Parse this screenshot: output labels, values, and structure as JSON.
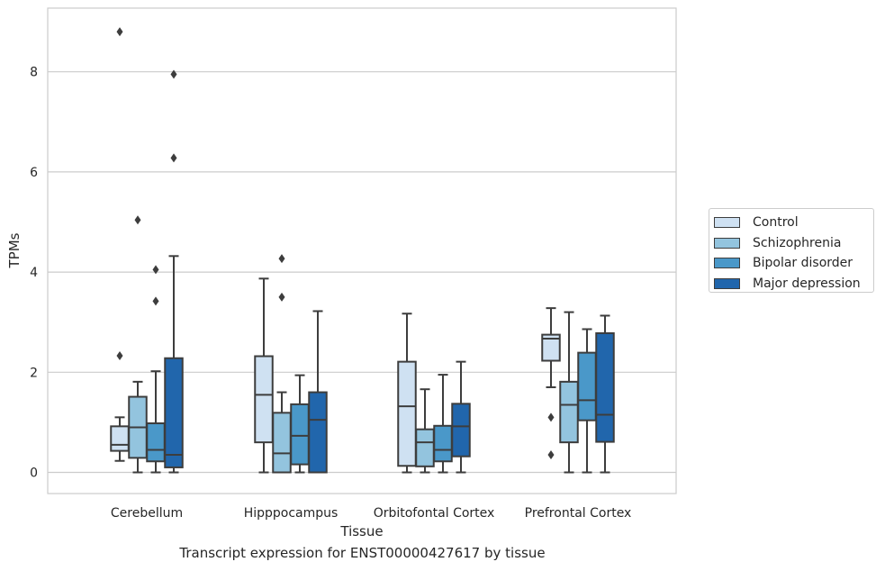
{
  "chart_data": {
    "type": "box",
    "caption": "Transcript expression for ENST00000427617 by tissue",
    "xlabel": "Tissue",
    "ylabel": "TPMs",
    "ylim": [
      -0.42,
      9.25
    ],
    "yticks": [
      0,
      2,
      4,
      6,
      8
    ],
    "ytick_labels": [
      "0",
      "2",
      "4",
      "6",
      "8"
    ],
    "grid": "horizontal",
    "legend_position": "right",
    "categories": [
      "Cerebellum",
      "Hipppocampus",
      "Orbitofontal Cortex",
      "Prefrontal Cortex"
    ],
    "series": [
      {
        "name": "Control",
        "color": "#cfe1f2",
        "boxes": [
          {
            "whislo": 0.23,
            "q1": 0.43,
            "med": 0.55,
            "q3": 0.92,
            "whishi": 1.1,
            "fliers": [
              2.33,
              8.8
            ]
          },
          {
            "whislo": 0.0,
            "q1": 0.6,
            "med": 1.55,
            "q3": 2.32,
            "whishi": 3.87,
            "fliers": []
          },
          {
            "whislo": 0.0,
            "q1": 0.13,
            "med": 1.32,
            "q3": 2.21,
            "whishi": 3.17,
            "fliers": []
          },
          {
            "whislo": 1.7,
            "q1": 2.23,
            "med": 2.67,
            "q3": 2.75,
            "whishi": 3.28,
            "fliers": [
              1.1,
              0.35
            ]
          }
        ]
      },
      {
        "name": "Schizophrenia",
        "color": "#93c4de",
        "boxes": [
          {
            "whislo": 0.0,
            "q1": 0.29,
            "med": 0.9,
            "q3": 1.51,
            "whishi": 1.81,
            "fliers": [
              5.04
            ]
          },
          {
            "whislo": 0.0,
            "q1": 0.0,
            "med": 0.38,
            "q3": 1.19,
            "whishi": 1.6,
            "fliers": [
              3.5,
              4.27
            ]
          },
          {
            "whislo": 0.0,
            "q1": 0.12,
            "med": 0.6,
            "q3": 0.86,
            "whishi": 1.66,
            "fliers": []
          },
          {
            "whislo": 0.0,
            "q1": 0.6,
            "med": 1.35,
            "q3": 1.81,
            "whishi": 3.2,
            "fliers": []
          }
        ]
      },
      {
        "name": "Bipolar disorder",
        "color": "#4a98c9",
        "boxes": [
          {
            "whislo": 0.0,
            "q1": 0.22,
            "med": 0.45,
            "q3": 0.98,
            "whishi": 2.02,
            "fliers": [
              3.42,
              4.05
            ]
          },
          {
            "whislo": 0.0,
            "q1": 0.16,
            "med": 0.73,
            "q3": 1.36,
            "whishi": 1.94,
            "fliers": []
          },
          {
            "whislo": 0.0,
            "q1": 0.22,
            "med": 0.45,
            "q3": 0.93,
            "whishi": 1.95,
            "fliers": []
          },
          {
            "whislo": 0.0,
            "q1": 1.04,
            "med": 1.44,
            "q3": 2.39,
            "whishi": 2.86,
            "fliers": []
          }
        ]
      },
      {
        "name": "Major depression",
        "color": "#2166ac",
        "boxes": [
          {
            "whislo": 0.0,
            "q1": 0.1,
            "med": 0.35,
            "q3": 2.28,
            "whishi": 4.32,
            "fliers": [
              6.28,
              7.95
            ]
          },
          {
            "whislo": 0.0,
            "q1": 0.0,
            "med": 1.05,
            "q3": 1.6,
            "whishi": 3.22,
            "fliers": []
          },
          {
            "whislo": 0.0,
            "q1": 0.32,
            "med": 0.92,
            "q3": 1.37,
            "whishi": 2.21,
            "fliers": []
          },
          {
            "whislo": 0.0,
            "q1": 0.61,
            "med": 1.15,
            "q3": 2.78,
            "whishi": 3.13,
            "fliers": []
          }
        ]
      }
    ]
  }
}
